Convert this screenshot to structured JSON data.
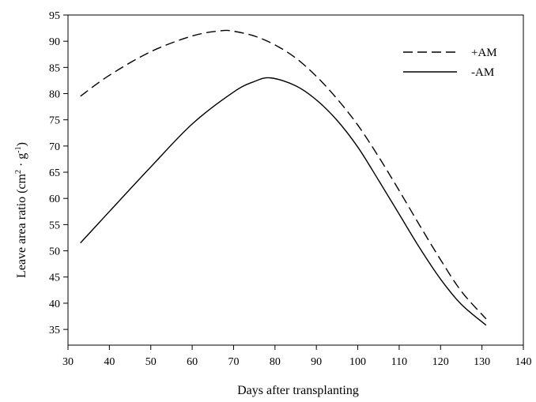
{
  "chart_data": {
    "type": "line",
    "title": "",
    "xlabel": "Days after transplanting",
    "ylabel_main": "Leave area ratio (cm",
    "ylabel_sup1": "2",
    "ylabel_mid": " · g",
    "ylabel_sup2": "-1",
    "ylabel_end": ")",
    "xlim": [
      30,
      140
    ],
    "ylim": [
      32,
      95
    ],
    "xticks": [
      30,
      40,
      50,
      60,
      70,
      80,
      90,
      100,
      110,
      120,
      130,
      140
    ],
    "yticks": [
      35,
      40,
      45,
      50,
      55,
      60,
      65,
      70,
      75,
      80,
      85,
      90,
      95
    ],
    "legend_position": "top-right",
    "grid": false,
    "series": [
      {
        "name": "+AM",
        "style": "dashed",
        "x": [
          33,
          40,
          50,
          60,
          67,
          70,
          75,
          80,
          85,
          90,
          95,
          100,
          105,
          110,
          115,
          120,
          125,
          131
        ],
        "y": [
          79.5,
          83.5,
          88.0,
          91.0,
          92.0,
          91.9,
          91.0,
          89.3,
          86.8,
          83.3,
          79.0,
          74.0,
          68.0,
          61.5,
          54.8,
          48.3,
          42.3,
          37.0
        ]
      },
      {
        "name": "-AM",
        "style": "solid",
        "x": [
          33,
          40,
          50,
          60,
          70,
          75,
          79,
          85,
          90,
          95,
          100,
          105,
          110,
          115,
          120,
          125,
          131
        ],
        "y": [
          51.5,
          57.5,
          66.0,
          74.2,
          80.3,
          82.3,
          83.0,
          81.5,
          78.8,
          74.9,
          69.8,
          63.5,
          57.0,
          50.5,
          44.6,
          39.8,
          35.8
        ]
      }
    ]
  }
}
